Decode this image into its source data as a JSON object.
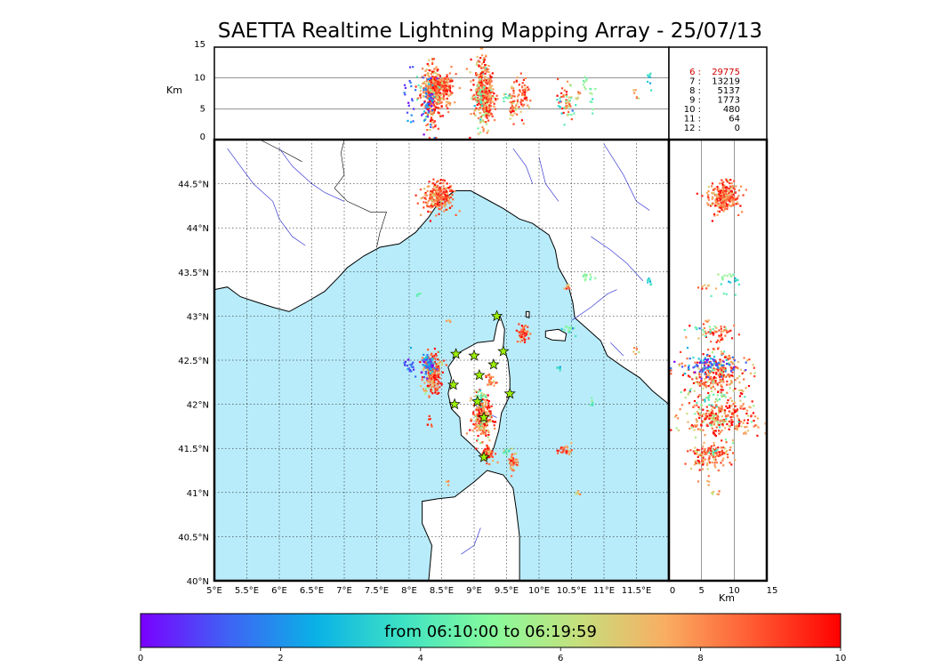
{
  "title": "SAETTA Realtime Lightning Mapping Array - 25/07/13",
  "altitude_axis": {
    "unit_label": "Km",
    "ticks": [
      0,
      5,
      10,
      15
    ],
    "range": [
      0,
      15
    ]
  },
  "map": {
    "lon_range": [
      5,
      12
    ],
    "lat_range": [
      40,
      45
    ],
    "lon_ticks": [
      "5°E",
      "5.5°E",
      "6°E",
      "6.5°E",
      "7°E",
      "7.5°E",
      "8°E",
      "8.5°E",
      "9°E",
      "9.5°E",
      "10°E",
      "10.5°E",
      "11°E",
      "11.5°E"
    ],
    "lat_ticks": [
      "40°N",
      "40.5°N",
      "41°N",
      "41.5°N",
      "42°N",
      "42.5°N",
      "43°N",
      "43.5°N",
      "44°N",
      "44.5°N"
    ],
    "grid": "dotted",
    "sea_color": "#b9ecfa",
    "land_color": "#ffffff",
    "river_color": "#3a3ad6"
  },
  "counts_table": {
    "rows": [
      {
        "station": "6 :",
        "count": "29775",
        "highlight": true
      },
      {
        "station": "7 :",
        "count": "13219",
        "highlight": false
      },
      {
        "station": "8 :",
        "count": "5137",
        "highlight": false
      },
      {
        "station": "9 :",
        "count": "1773",
        "highlight": false
      },
      {
        "station": "10 :",
        "count": "480",
        "highlight": false
      },
      {
        "station": "11 :",
        "count": "64",
        "highlight": false
      },
      {
        "station": "12 :",
        "count": "0",
        "highlight": false
      }
    ],
    "highlight_color": "#d40000"
  },
  "stations": [
    {
      "lon": 9.35,
      "lat": 43.0
    },
    {
      "lon": 8.72,
      "lat": 42.57
    },
    {
      "lon": 9.0,
      "lat": 42.55
    },
    {
      "lon": 9.45,
      "lat": 42.6
    },
    {
      "lon": 9.3,
      "lat": 42.45
    },
    {
      "lon": 9.08,
      "lat": 42.33
    },
    {
      "lon": 8.68,
      "lat": 42.22
    },
    {
      "lon": 9.55,
      "lat": 42.12
    },
    {
      "lon": 9.05,
      "lat": 42.03
    },
    {
      "lon": 8.7,
      "lat": 42.0
    },
    {
      "lon": 9.15,
      "lat": 41.85
    },
    {
      "lon": 9.15,
      "lat": 41.4
    }
  ],
  "colorbar": {
    "label": "from 06:10:00 to 06:19:59",
    "ticks": [
      0,
      2,
      4,
      6,
      8,
      10
    ],
    "range": [
      0,
      10
    ],
    "colors": [
      "#7a00ff",
      "#3f63f5",
      "#0ab1e6",
      "#3ee2c4",
      "#87fb9c",
      "#c5e07d",
      "#f9ad62",
      "#ff5a32",
      "#ff0000"
    ]
  },
  "lightning_clusters": [
    {
      "lon": 8.45,
      "lat": 44.35,
      "lonSpread": 0.12,
      "latSpread": 0.08,
      "alt": 8.5,
      "altSpread": 1.2,
      "n": 260,
      "t": 8.5,
      "tSpread": 1.0
    },
    {
      "lon": 8.35,
      "lat": 42.35,
      "lonSpread": 0.07,
      "latSpread": 0.12,
      "alt": 7.2,
      "altSpread": 2.5,
      "n": 240,
      "t": 8.4,
      "tSpread": 1.6
    },
    {
      "lon": 8.3,
      "lat": 42.45,
      "lonSpread": 0.05,
      "latSpread": 0.05,
      "alt": 6.5,
      "altSpread": 2.0,
      "n": 60,
      "t": 1.5,
      "tSpread": 1.0
    },
    {
      "lon": 9.12,
      "lat": 41.85,
      "lonSpread": 0.07,
      "latSpread": 0.12,
      "alt": 7.8,
      "altSpread": 2.6,
      "n": 280,
      "t": 8.2,
      "tSpread": 1.8
    },
    {
      "lon": 9.22,
      "lat": 41.45,
      "lonSpread": 0.05,
      "latSpread": 0.05,
      "alt": 6.8,
      "altSpread": 1.5,
      "n": 60,
      "t": 8.5,
      "tSpread": 1.0
    },
    {
      "lon": 9.6,
      "lat": 41.35,
      "lonSpread": 0.04,
      "latSpread": 0.06,
      "alt": 6.0,
      "altSpread": 1.5,
      "n": 50,
      "t": 8.5,
      "tSpread": 1.2
    },
    {
      "lon": 9.76,
      "lat": 42.8,
      "lonSpread": 0.05,
      "latSpread": 0.05,
      "alt": 6.8,
      "altSpread": 1.5,
      "n": 50,
      "t": 9.0,
      "tSpread": 0.8
    },
    {
      "lon": 10.4,
      "lat": 41.48,
      "lonSpread": 0.06,
      "latSpread": 0.03,
      "alt": 7.0,
      "altSpread": 1.5,
      "n": 30,
      "t": 8.5,
      "tSpread": 1.0
    },
    {
      "lon": 9.25,
      "lat": 42.27,
      "lonSpread": 0.04,
      "latSpread": 0.04,
      "alt": 6.5,
      "altSpread": 1.5,
      "n": 25,
      "t": 8.5,
      "tSpread": 1.0
    },
    {
      "lon": 9.1,
      "lat": 42.1,
      "lonSpread": 0.05,
      "latSpread": 0.05,
      "alt": 6.0,
      "altSpread": 2.0,
      "n": 25,
      "t": 4.5,
      "tSpread": 1.0
    },
    {
      "lon": 10.45,
      "lat": 42.85,
      "lonSpread": 0.05,
      "latSpread": 0.03,
      "alt": 5.0,
      "altSpread": 1.5,
      "n": 15,
      "t": 4.5,
      "tSpread": 1.0
    },
    {
      "lon": 10.7,
      "lat": 43.45,
      "lonSpread": 0.05,
      "latSpread": 0.02,
      "alt": 8.5,
      "altSpread": 1.0,
      "n": 12,
      "t": 5.0,
      "tSpread": 0.6
    },
    {
      "lon": 10.45,
      "lat": 43.33,
      "lonSpread": 0.03,
      "latSpread": 0.02,
      "alt": 5.5,
      "altSpread": 1.0,
      "n": 8,
      "t": 8.0,
      "tSpread": 1.0
    },
    {
      "lon": 11.7,
      "lat": 43.4,
      "lonSpread": 0.02,
      "latSpread": 0.03,
      "alt": 9.5,
      "altSpread": 1.0,
      "n": 8,
      "t": 3.5,
      "tSpread": 0.5
    },
    {
      "lon": 11.5,
      "lat": 42.6,
      "lonSpread": 0.02,
      "latSpread": 0.03,
      "alt": 7.5,
      "altSpread": 1.0,
      "n": 6,
      "t": 8.0,
      "tSpread": 1.0
    },
    {
      "lon": 10.3,
      "lat": 42.4,
      "lonSpread": 0.03,
      "latSpread": 0.02,
      "alt": 6.0,
      "altSpread": 1.0,
      "n": 6,
      "t": 3.0,
      "tSpread": 1.0
    },
    {
      "lon": 10.8,
      "lat": 42.0,
      "lonSpread": 0.03,
      "latSpread": 0.02,
      "alt": 6.0,
      "altSpread": 1.0,
      "n": 6,
      "t": 4.5,
      "tSpread": 0.8
    },
    {
      "lon": 10.6,
      "lat": 41.0,
      "lonSpread": 0.03,
      "latSpread": 0.02,
      "alt": 6.0,
      "altSpread": 1.0,
      "n": 6,
      "t": 8.0,
      "tSpread": 1.0
    },
    {
      "lon": 8.3,
      "lat": 41.8,
      "lonSpread": 0.03,
      "latSpread": 0.03,
      "alt": 6.0,
      "altSpread": 1.0,
      "n": 6,
      "t": 8.0,
      "tSpread": 1.0
    },
    {
      "lon": 9.5,
      "lat": 41.45,
      "lonSpread": 0.03,
      "latSpread": 0.02,
      "alt": 7.0,
      "altSpread": 1.0,
      "n": 8,
      "t": 4.0,
      "tSpread": 1.0
    },
    {
      "lon": 8.0,
      "lat": 42.45,
      "lonSpread": 0.04,
      "latSpread": 0.08,
      "alt": 7.0,
      "altSpread": 2.0,
      "n": 20,
      "t": 1.2,
      "tSpread": 0.6
    },
    {
      "lon": 8.6,
      "lat": 41.1,
      "lonSpread": 0.02,
      "latSpread": 0.02,
      "alt": 6.0,
      "altSpread": 1.0,
      "n": 4,
      "t": 8.0,
      "tSpread": 0.6
    },
    {
      "lon": 8.15,
      "lat": 43.25,
      "lonSpread": 0.02,
      "latSpread": 0.02,
      "alt": 8.0,
      "altSpread": 1.0,
      "n": 4,
      "t": 4.5,
      "tSpread": 0.6
    },
    {
      "lon": 8.6,
      "lat": 42.95,
      "lonSpread": 0.02,
      "latSpread": 0.02,
      "alt": 6.0,
      "altSpread": 1.0,
      "n": 4,
      "t": 8.0,
      "tSpread": 0.6
    }
  ]
}
